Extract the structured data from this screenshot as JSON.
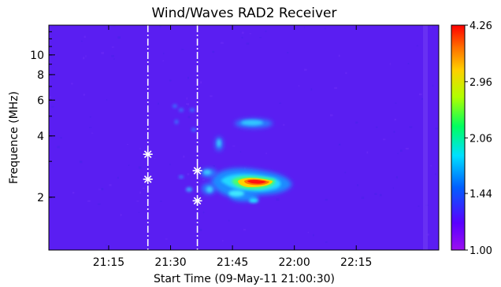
{
  "chart_data": {
    "type": "heatmap",
    "title": "Wind/Waves RAD2 Receiver",
    "xlabel": "Start Time (09-May-11 21:00:30)",
    "ylabel": "Frequence (MHz)",
    "yscale": "log",
    "xlim_minutes_after_2100": [
      0.5,
      95
    ],
    "ylim_mhz": [
      1.1,
      14
    ],
    "x_ticks": [
      {
        "value": 15,
        "label": "21:15"
      },
      {
        "value": 30,
        "label": "21:30"
      },
      {
        "value": 45,
        "label": "21:45"
      },
      {
        "value": 60,
        "label": "22:00"
      },
      {
        "value": 75,
        "label": "22:15"
      }
    ],
    "y_ticks": [
      {
        "value": 2,
        "label": "2"
      },
      {
        "value": 4,
        "label": "4"
      },
      {
        "value": 6,
        "label": "6"
      },
      {
        "value": 8,
        "label": "8"
      },
      {
        "value": 10,
        "label": "10"
      }
    ],
    "colorbar": {
      "range": [
        1.0,
        4.26
      ],
      "ticks": [
        {
          "value": 1.0,
          "label": "1.00"
        },
        {
          "value": 1.44,
          "label": "1.44"
        },
        {
          "value": 2.06,
          "label": "2.06"
        },
        {
          "value": 2.96,
          "label": "2.96"
        },
        {
          "value": 4.26,
          "label": "4.26"
        }
      ],
      "colors": [
        "#9b10f0",
        "#5a00ff",
        "#0060ff",
        "#00e0ff",
        "#00ff60",
        "#b0ff00",
        "#ffd000",
        "#ff7000",
        "#ff0000"
      ]
    },
    "background_intensity": 1.25,
    "emission_features": [
      {
        "time_min": 37,
        "time_max": 58,
        "freq_min_mhz": 1.95,
        "freq_max_mhz": 2.6,
        "peak_time": 50,
        "peak_freq_mhz": 2.25,
        "peak_intensity": 4.26
      },
      {
        "time_min": 40,
        "time_max": 55,
        "freq_min_mhz": 4.2,
        "freq_max_mhz": 4.7,
        "peak_time": 46,
        "peak_freq_mhz": 4.4,
        "peak_intensity": 1.7
      },
      {
        "time_min": 34,
        "time_max": 38,
        "freq_min_mhz": 2.4,
        "freq_max_mhz": 3.8,
        "peak_time": 36,
        "peak_freq_mhz": 3.0,
        "peak_intensity": 1.6
      },
      {
        "time_min": 24,
        "time_max": 31,
        "freq_min_mhz": 4.8,
        "freq_max_mhz": 5.6,
        "peak_time": 28,
        "peak_freq_mhz": 5.1,
        "peak_intensity": 1.3
      }
    ],
    "vertical_markers": [
      {
        "time": 24.5,
        "style": "dash-dot",
        "color": "#ffffff"
      },
      {
        "time": 36.5,
        "style": "dash-dot",
        "color": "#ffffff"
      }
    ],
    "star_markers": [
      {
        "time": 24.5,
        "freq_mhz": 3.25
      },
      {
        "time": 24.5,
        "freq_mhz": 2.45
      },
      {
        "time": 36.5,
        "freq_mhz": 2.7
      },
      {
        "time": 36.5,
        "freq_mhz": 1.92
      }
    ]
  }
}
